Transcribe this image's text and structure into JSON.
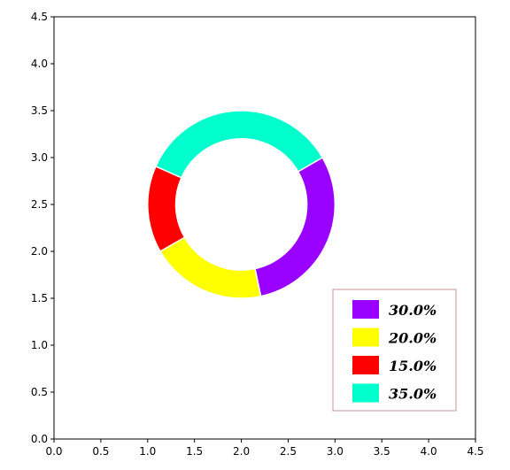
{
  "chart_data": {
    "type": "pie",
    "style": "donut",
    "title": "",
    "xlabel": "",
    "ylabel": "",
    "xlim": [
      0.0,
      4.5
    ],
    "ylim": [
      0.0,
      4.5
    ],
    "xticks": [
      "0.0",
      "0.5",
      "1.0",
      "1.5",
      "2.0",
      "2.5",
      "3.0",
      "3.5",
      "4.0",
      "4.5"
    ],
    "yticks": [
      "0.0",
      "0.5",
      "1.0",
      "1.5",
      "2.0",
      "2.5",
      "3.0",
      "3.5",
      "4.0",
      "4.5"
    ],
    "grid": false,
    "center": [
      2.0,
      2.5
    ],
    "outer_radius": 1.0,
    "inner_radius": 0.7,
    "start_angle_deg": 30,
    "direction": "clockwise",
    "slices": [
      {
        "label": "30.0%",
        "value": 30.0,
        "color": "#9900ff"
      },
      {
        "label": "20.0%",
        "value": 20.0,
        "color": "#ffff00"
      },
      {
        "label": "15.0%",
        "value": 15.0,
        "color": "#ff0000"
      },
      {
        "label": "35.0%",
        "value": 35.0,
        "color": "#00ffcc"
      }
    ],
    "legend_position": "lower-right"
  }
}
